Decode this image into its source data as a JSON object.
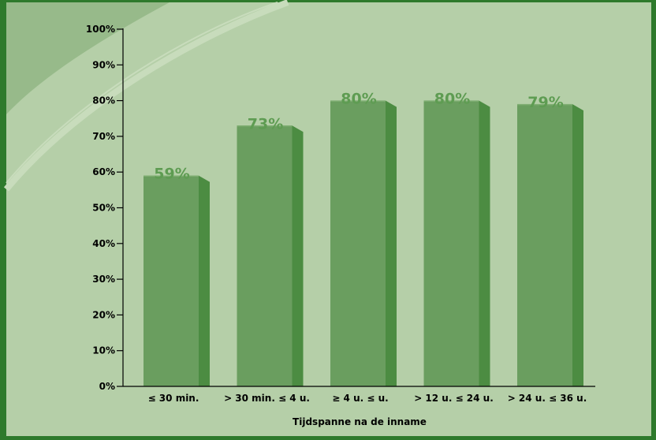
{
  "chart_data": {
    "type": "bar",
    "categories": [
      "≤ 30 min.",
      "> 30 min. ≤ 4 u.",
      "≥ 4 u. ≤ u.",
      "> 12 u. ≤ 24 u.",
      "> 24 u. ≤ 36 u."
    ],
    "values": [
      59,
      73,
      80,
      80,
      79
    ],
    "value_labels": [
      "59%",
      "73%",
      "80%",
      "80%",
      "79%"
    ],
    "title": "",
    "xlabel": "Tijdspanne na de inname",
    "ylabel": "",
    "ylim": [
      0,
      100
    ],
    "yticks": [
      "0%",
      "10%",
      "20%",
      "30%",
      "40%",
      "50%",
      "60%",
      "70%",
      "80%",
      "90%",
      "100%"
    ],
    "grid": false,
    "legend": "none"
  },
  "colors": {
    "frame": "#2e7a2c",
    "background": "#b5cfa8",
    "corner_shape": "#97ba8a",
    "swoosh": "#c8dcbc",
    "bar_front": "#6a9e5f",
    "bar_side": "#4c8c42",
    "bar_top": "#7fae72",
    "value_label": "#5e9c52",
    "axis": "#000000",
    "text": "#000000"
  }
}
